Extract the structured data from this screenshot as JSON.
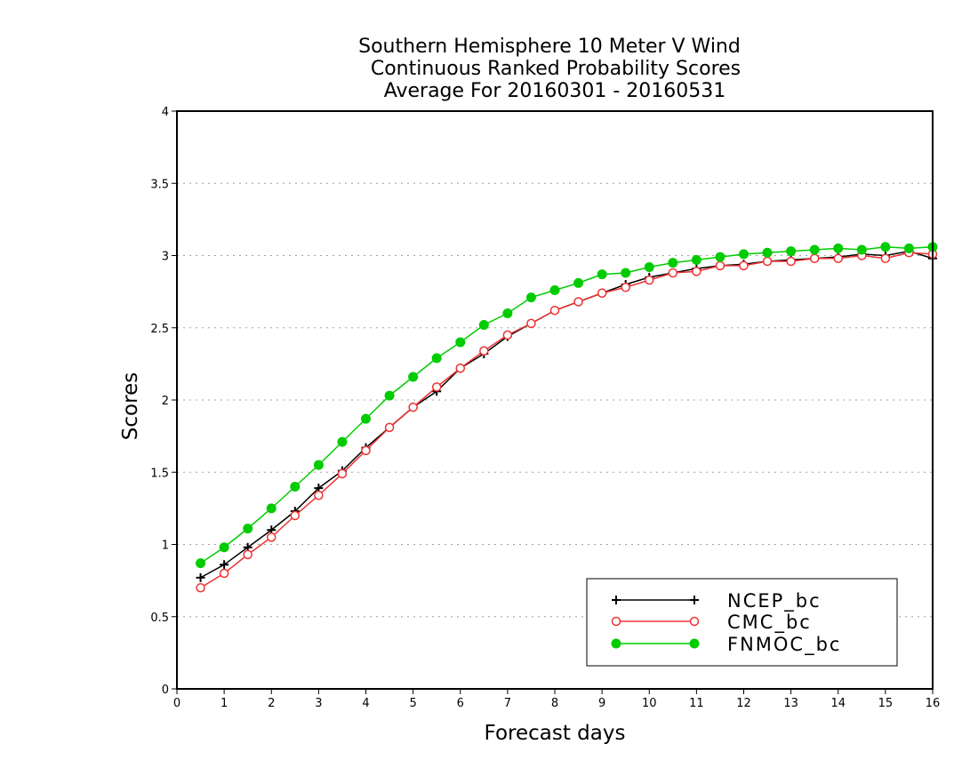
{
  "chart_data": {
    "type": "line",
    "title_lines": [
      "Southern Hemisphere 10 Meter V Wind",
      "Continuous Ranked Probability Scores",
      "Average For 20160301 - 20160531"
    ],
    "xlabel": "Forecast days",
    "ylabel": "Scores",
    "xlim": [
      0,
      16
    ],
    "ylim": [
      0,
      4
    ],
    "x_ticks": [
      "0",
      "1",
      "2",
      "3",
      "4",
      "5",
      "6",
      "7",
      "8",
      "9",
      "10",
      "11",
      "12",
      "13",
      "14",
      "15",
      "16"
    ],
    "y_ticks": [
      "0",
      "0.5",
      "1",
      "1.5",
      "2",
      "2.5",
      "3",
      "3.5",
      "4"
    ],
    "grid": true,
    "legend_position": "bottom-right",
    "x": [
      0.5,
      1,
      1.5,
      2,
      2.5,
      3,
      3.5,
      4,
      4.5,
      5,
      5.5,
      6,
      6.5,
      7,
      7.5,
      8,
      8.5,
      9,
      9.5,
      10,
      10.5,
      11,
      11.5,
      12,
      12.5,
      13,
      13.5,
      14,
      14.5,
      15,
      15.5,
      16
    ],
    "series": [
      {
        "name": "NCEP_bc",
        "color": "#000000",
        "marker": "plus",
        "values": [
          0.77,
          0.86,
          0.98,
          1.1,
          1.23,
          1.39,
          1.51,
          1.67,
          1.81,
          1.95,
          2.06,
          2.22,
          2.32,
          2.44,
          2.53,
          2.62,
          2.68,
          2.74,
          2.8,
          2.85,
          2.88,
          2.91,
          2.93,
          2.94,
          2.96,
          2.97,
          2.98,
          2.99,
          3.01,
          3.0,
          3.03,
          2.98
        ]
      },
      {
        "name": "CMC_bc",
        "color": "#ee3333",
        "marker": "open-circle",
        "values": [
          0.7,
          0.8,
          0.93,
          1.05,
          1.2,
          1.34,
          1.49,
          1.65,
          1.81,
          1.95,
          2.09,
          2.22,
          2.34,
          2.45,
          2.53,
          2.62,
          2.68,
          2.74,
          2.78,
          2.83,
          2.88,
          2.89,
          2.93,
          2.93,
          2.96,
          2.96,
          2.98,
          2.98,
          3.0,
          2.98,
          3.02,
          3.01
        ]
      },
      {
        "name": "FNMOC_bc",
        "color": "#00cc00",
        "marker": "filled-circle",
        "values": [
          0.87,
          0.98,
          1.11,
          1.25,
          1.4,
          1.55,
          1.71,
          1.87,
          2.03,
          2.16,
          2.29,
          2.4,
          2.52,
          2.6,
          2.71,
          2.76,
          2.81,
          2.87,
          2.88,
          2.92,
          2.95,
          2.97,
          2.99,
          3.01,
          3.02,
          3.03,
          3.04,
          3.05,
          3.04,
          3.06,
          3.05,
          3.06
        ]
      }
    ]
  }
}
